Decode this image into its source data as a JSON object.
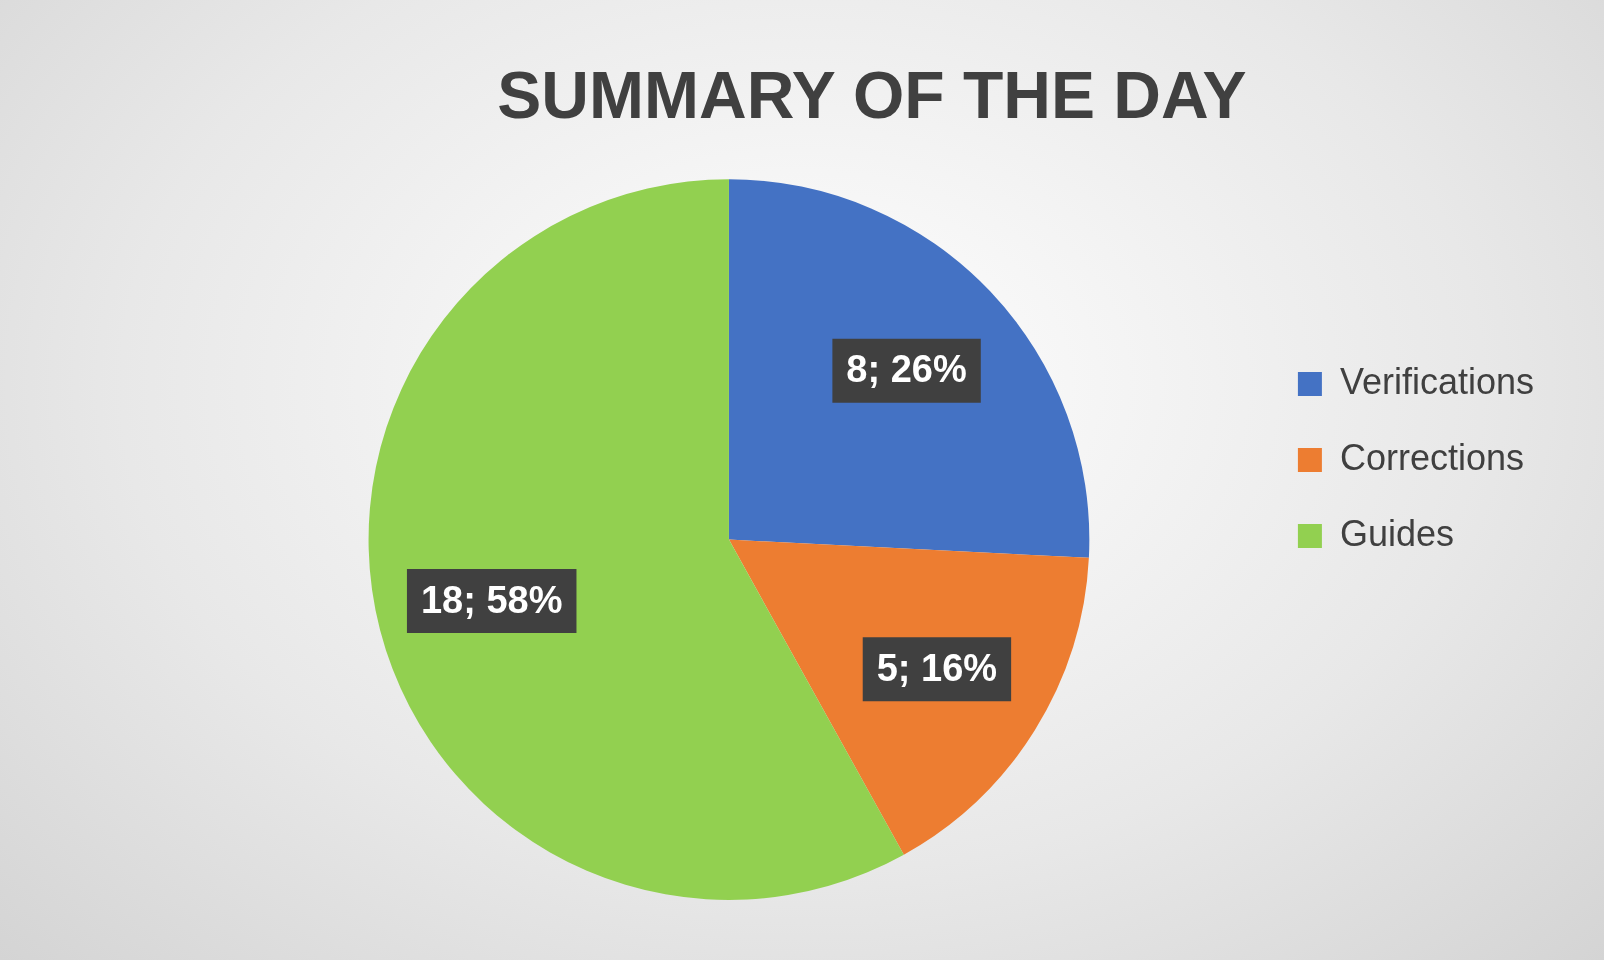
{
  "chart_data": {
    "type": "pie",
    "title": "SUMMARY OF THE DAY",
    "categories": [
      "Verifications",
      "Corrections",
      "Guides"
    ],
    "values": [
      8,
      5,
      18
    ],
    "colors": [
      "#4472c4",
      "#ed7d31",
      "#92d050"
    ],
    "value_labels": [
      "8; 26%",
      "5; 16%",
      "18; 58%"
    ],
    "legend": "right"
  }
}
